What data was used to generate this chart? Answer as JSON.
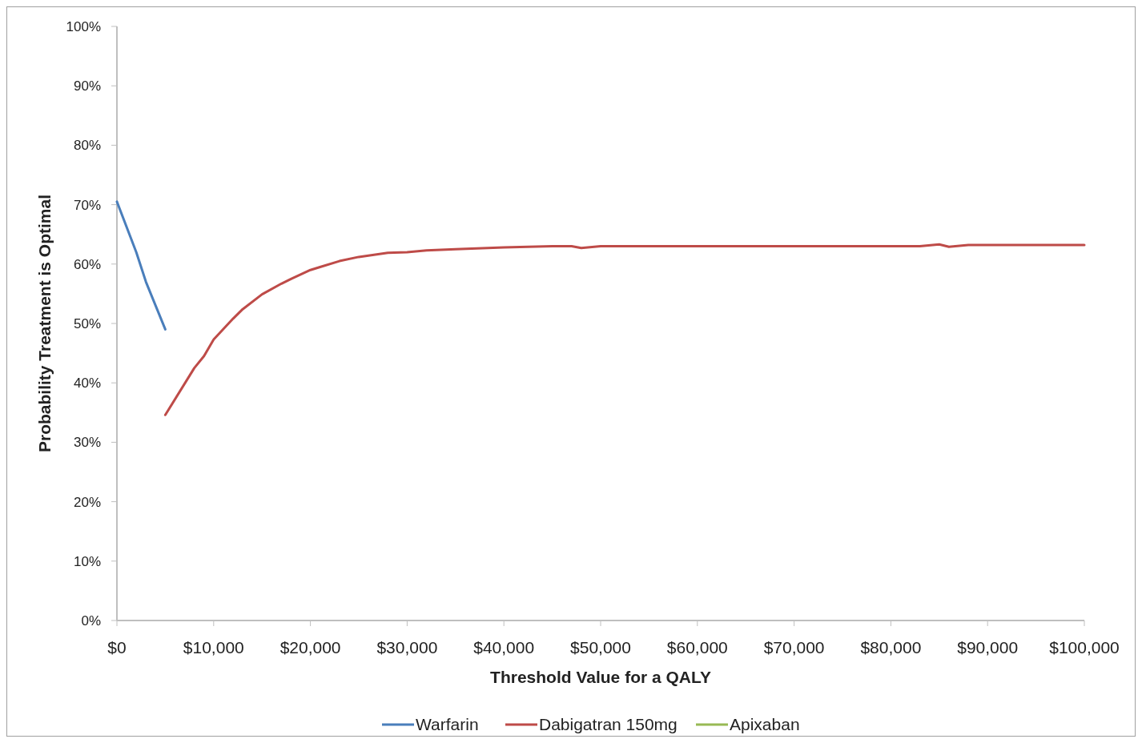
{
  "chart_data": {
    "type": "line",
    "xlabel": "Threshold Value for a QALY",
    "ylabel": "Probability Treatment is Optimal",
    "xlim": [
      0,
      100000
    ],
    "xticks": [
      {
        "value": 0,
        "label": "$0"
      },
      {
        "value": 10000,
        "label": "$10,000"
      },
      {
        "value": 20000,
        "label": "$20,000"
      },
      {
        "value": 30000,
        "label": "$30,000"
      },
      {
        "value": 40000,
        "label": "$40,000"
      },
      {
        "value": 50000,
        "label": "$50,000"
      },
      {
        "value": 60000,
        "label": "$60,000"
      },
      {
        "value": 70000,
        "label": "$70,000"
      },
      {
        "value": 80000,
        "label": "$80,000"
      },
      {
        "value": 90000,
        "label": "$90,000"
      },
      {
        "value": 100000,
        "label": "$100,000"
      }
    ],
    "ylim": [
      0,
      100
    ],
    "yticks": [
      {
        "value": 0,
        "label": "0%"
      },
      {
        "value": 10,
        "label": "10%"
      },
      {
        "value": 20,
        "label": "20%"
      },
      {
        "value": 30,
        "label": "30%"
      },
      {
        "value": 40,
        "label": "40%"
      },
      {
        "value": 50,
        "label": "50%"
      },
      {
        "value": 60,
        "label": "60%"
      },
      {
        "value": 70,
        "label": "70%"
      },
      {
        "value": 80,
        "label": "80%"
      },
      {
        "value": 90,
        "label": "90%"
      },
      {
        "value": 100,
        "label": "100%"
      }
    ],
    "grid": false,
    "legend": "bottom",
    "marker": "none",
    "series": [
      {
        "name": "Warfarin",
        "color": "#4a7ebb",
        "x": [
          0,
          2000,
          3000,
          5000
        ],
        "values": [
          70.5,
          62,
          57,
          49
        ]
      },
      {
        "name": "Dabigatran 150mg",
        "color": "#be4b48",
        "x": [
          5000,
          8000,
          9000,
          10000,
          12000,
          13000,
          15000,
          17000,
          18000,
          20000,
          21000,
          23000,
          25000,
          28000,
          30000,
          32000,
          35000,
          40000,
          45000,
          47000,
          48000,
          50000,
          60000,
          70000,
          83000,
          85000,
          86000,
          88000,
          100000
        ],
        "values": [
          34.6,
          42.5,
          44.5,
          47.3,
          50.8,
          52.4,
          54.9,
          56.7,
          57.5,
          59,
          59.5,
          60.5,
          61.2,
          61.9,
          62,
          62.3,
          62.5,
          62.8,
          63,
          63,
          62.7,
          63,
          63,
          63,
          63,
          63.3,
          62.9,
          63.2,
          63.2
        ]
      },
      {
        "name": "Apixaban",
        "color": "#98b954"
      }
    ]
  }
}
